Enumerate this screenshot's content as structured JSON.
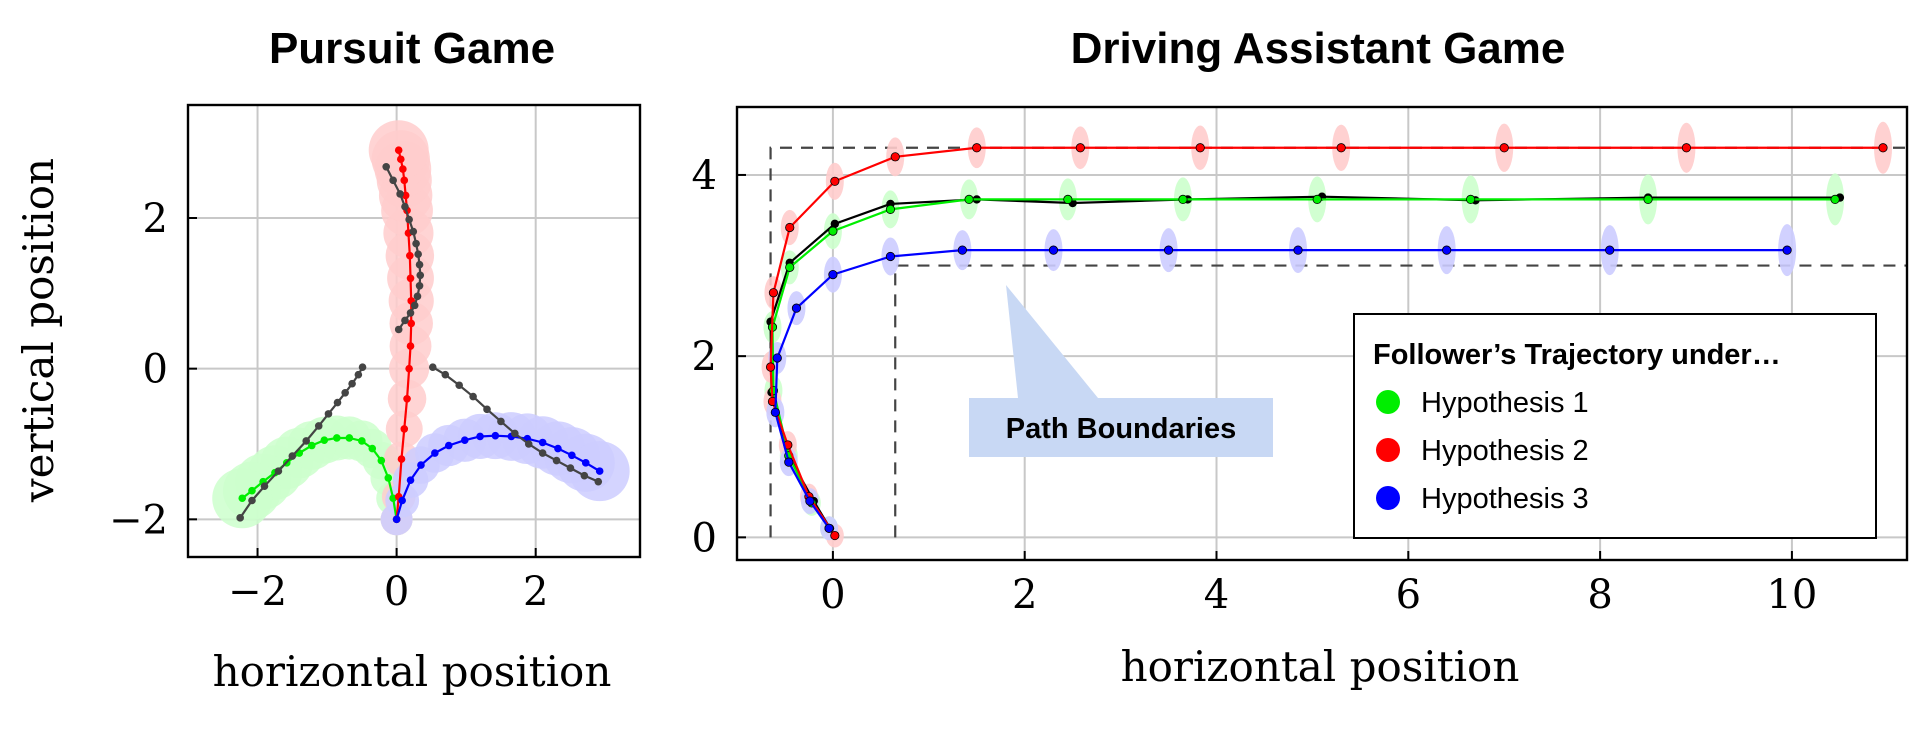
{
  "chart_data": [
    {
      "type": "line",
      "title": "Pursuit Game",
      "xlabel": "horizontal position",
      "ylabel": "vertical position",
      "xlim": [
        -3,
        3.5
      ],
      "ylim": [
        -2.5,
        3.5
      ],
      "xticks": [
        -2,
        0,
        2
      ],
      "yticks": [
        -2,
        0,
        2
      ],
      "xtick_labels": [
        "−2",
        "0",
        "2"
      ],
      "ytick_labels": [
        "−2",
        "0",
        "2"
      ],
      "grid": true,
      "series": [
        {
          "color": "#00ee00",
          "uncertainty": "#ccffcc",
          "markers": true,
          "x": [
            0,
            -0.05,
            -0.12,
            -0.22,
            -0.35,
            -0.5,
            -0.68,
            -0.86,
            -1.04,
            -1.22,
            -1.4,
            -1.58,
            -1.75,
            -1.92,
            -2.08,
            -2.22
          ],
          "y": [
            -2,
            -1.72,
            -1.45,
            -1.22,
            -1.06,
            -0.96,
            -0.92,
            -0.92,
            -0.95,
            -1.02,
            -1.12,
            -1.25,
            -1.38,
            -1.5,
            -1.62,
            -1.72
          ]
        },
        {
          "color": "#ff0000",
          "uncertainty": "#ffcccc",
          "markers": true,
          "x": [
            0,
            0.03,
            0.07,
            0.11,
            0.15,
            0.18,
            0.2,
            0.21,
            0.21,
            0.2,
            0.19,
            0.17,
            0.15,
            0.13,
            0.11,
            0.09,
            0.06,
            0.03
          ],
          "y": [
            -2,
            -1.7,
            -1.2,
            -0.8,
            -0.4,
            0,
            0.3,
            0.6,
            0.9,
            1.2,
            1.5,
            1.8,
            2.1,
            2.3,
            2.5,
            2.65,
            2.78,
            2.9
          ]
        },
        {
          "color": "#0000ff",
          "uncertainty": "#ccccff",
          "markers": true,
          "x": [
            0,
            0.08,
            0.2,
            0.35,
            0.55,
            0.75,
            0.98,
            1.2,
            1.42,
            1.65,
            1.88,
            2.1,
            2.32,
            2.52,
            2.72,
            2.92
          ],
          "y": [
            -2,
            -1.75,
            -1.48,
            -1.28,
            -1.12,
            -1.02,
            -0.95,
            -0.9,
            -0.89,
            -0.9,
            -0.93,
            -0.98,
            -1.06,
            -1.15,
            -1.25,
            -1.36
          ]
        },
        {
          "color": "#444444",
          "markers": true,
          "x": [
            -2.25,
            -2.08,
            -1.9,
            -1.7,
            -1.5,
            -1.3,
            -1.12,
            -0.98,
            -0.85,
            -0.74,
            -0.64,
            -0.55,
            -0.49
          ],
          "y": [
            -1.98,
            -1.75,
            -1.56,
            -1.36,
            -1.16,
            -0.96,
            -0.76,
            -0.6,
            -0.45,
            -0.32,
            -0.2,
            -0.08,
            0.02
          ]
        },
        {
          "color": "#444444",
          "markers": true,
          "x": [
            0.52,
            0.7,
            0.9,
            1.1,
            1.3,
            1.5,
            1.7,
            1.9,
            2.1,
            2.3,
            2.5,
            2.7,
            2.9
          ],
          "y": [
            0.02,
            -0.08,
            -0.22,
            -0.37,
            -0.54,
            -0.7,
            -0.86,
            -1.0,
            -1.12,
            -1.22,
            -1.32,
            -1.42,
            -1.5
          ]
        },
        {
          "color": "#444444",
          "markers": true,
          "x": [
            -0.15,
            -0.05,
            0.05,
            0.12,
            0.18,
            0.24,
            0.28,
            0.31,
            0.33,
            0.34,
            0.33,
            0.3,
            0.26,
            0.2,
            0.12,
            0.03
          ],
          "y": [
            2.68,
            2.5,
            2.32,
            2.15,
            1.98,
            1.82,
            1.66,
            1.52,
            1.38,
            1.24,
            1.1,
            0.96,
            0.84,
            0.74,
            0.64,
            0.52
          ]
        }
      ]
    },
    {
      "type": "line",
      "title": "Driving Assistant Game",
      "xlabel": "horizontal position",
      "xlim": [
        -1,
        11.2
      ],
      "ylim": [
        -0.25,
        4.75
      ],
      "xticks": [
        0,
        2,
        4,
        6,
        8,
        10
      ],
      "yticks": [
        0,
        2,
        4
      ],
      "xtick_labels": [
        "0",
        "2",
        "4",
        "6",
        "8",
        "10"
      ],
      "ytick_labels": [
        "0",
        "2",
        "4"
      ],
      "grid": true,
      "path_boundaries": {
        "upper": {
          "x": [
            -0.65,
            -0.65,
            11.2
          ],
          "y": [
            0,
            4.3,
            4.3
          ]
        },
        "lower": {
          "x": [
            0.65,
            0.65,
            11.2
          ],
          "y": [
            0,
            3.0,
            3.0
          ]
        }
      },
      "annotation": "Path Boundaries",
      "legend": {
        "title": "Follower’s Trajectory under…",
        "position": "lower-right",
        "entries": [
          {
            "label": "Hypothesis 1",
            "color": "#00ee00"
          },
          {
            "label": "Hypothesis 2",
            "color": "#ff0000"
          },
          {
            "label": "Hypothesis 3",
            "color": "#0000ff"
          }
        ]
      },
      "series": [
        {
          "color": "#000000",
          "markers": true,
          "x": [
            -0.03,
            -0.2,
            -0.46,
            -0.64,
            -0.65,
            -0.45,
            0.02,
            0.6,
            1.5,
            2.5,
            3.7,
            5.1,
            6.7,
            8.5,
            10.5
          ],
          "y": [
            0.1,
            0.4,
            0.9,
            1.6,
            2.38,
            3.03,
            3.46,
            3.68,
            3.73,
            3.69,
            3.73,
            3.76,
            3.72,
            3.75,
            3.75
          ]
        },
        {
          "color": "#00ee00",
          "uncertainty": "#ccffcc",
          "markers": true,
          "x": [
            -0.04,
            -0.22,
            -0.46,
            -0.62,
            -0.63,
            -0.45,
            0.0,
            0.6,
            1.42,
            2.45,
            3.65,
            5.05,
            6.65,
            8.5,
            10.45
          ],
          "y": [
            0.1,
            0.38,
            0.9,
            1.62,
            2.32,
            2.98,
            3.38,
            3.62,
            3.73,
            3.73,
            3.73,
            3.73,
            3.73,
            3.73,
            3.73
          ]
        },
        {
          "color": "#ff0000",
          "uncertainty": "#ffcccc",
          "markers": true,
          "x": [
            0.02,
            -0.25,
            -0.47,
            -0.63,
            -0.65,
            -0.62,
            -0.45,
            0.02,
            0.65,
            1.5,
            2.58,
            3.83,
            5.3,
            7.0,
            8.9,
            10.95
          ],
          "y": [
            0.02,
            0.45,
            1.02,
            1.5,
            1.88,
            2.7,
            3.42,
            3.93,
            4.2,
            4.3,
            4.3,
            4.3,
            4.3,
            4.3,
            4.3,
            4.3
          ]
        },
        {
          "color": "#0000ff",
          "uncertainty": "#ccccff",
          "markers": true,
          "x": [
            -0.04,
            -0.24,
            -0.46,
            -0.6,
            -0.58,
            -0.38,
            0.0,
            0.6,
            1.35,
            2.3,
            3.5,
            4.85,
            6.4,
            8.1,
            9.95
          ],
          "y": [
            0.1,
            0.4,
            0.83,
            1.38,
            1.98,
            2.53,
            2.9,
            3.1,
            3.17,
            3.17,
            3.17,
            3.17,
            3.17,
            3.17,
            3.17
          ]
        }
      ]
    }
  ]
}
